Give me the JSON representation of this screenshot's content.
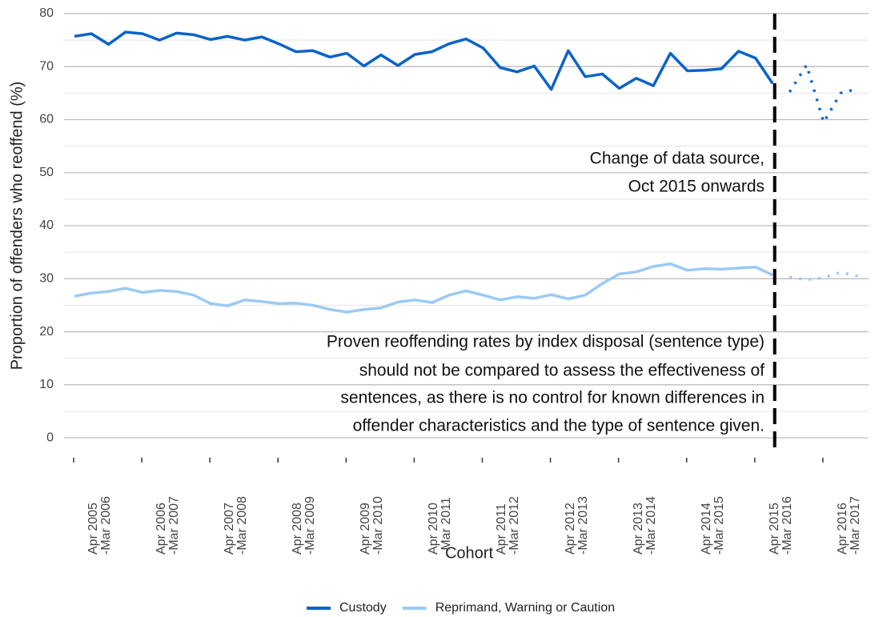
{
  "chart_data": {
    "type": "line",
    "y_label": "Proportion of offenders who reoffend (%)",
    "x_label": "Cohort",
    "categories": [
      "Apr 2005\n-Mar 2006",
      null,
      null,
      null,
      "Apr 2006\n-Mar 2007",
      null,
      null,
      null,
      "Apr 2007\n-Mar 2008",
      null,
      null,
      null,
      "Apr 2008\n-Mar 2009",
      null,
      null,
      null,
      "Apr 2009\n-Mar 2010",
      null,
      null,
      null,
      "Apr 2010\n-Mar 2011",
      null,
      null,
      null,
      "Apr 2011\n-Mar 2012",
      null,
      null,
      null,
      "Apr 2012\n-Mar 2013",
      null,
      null,
      null,
      "Apr 2013\n-Mar 2014",
      null,
      null,
      null,
      "Apr 2014\n-Mar 2015",
      null,
      null,
      null,
      "Apr 2015\n-Mar 2016",
      null,
      null,
      null,
      "Apr 2016\n-Mar 2017",
      null,
      null
    ],
    "series": [
      {
        "name": "Custody",
        "color": "#0a63c8",
        "values": [
          75.7,
          76.2,
          74.2,
          76.5,
          76.2,
          75,
          76.3,
          76,
          75.1,
          75.7,
          75,
          75.6,
          74.3,
          72.8,
          73,
          71.8,
          72.5,
          70.1,
          72.2,
          70.2,
          72.3,
          72.8,
          74.3,
          75.2,
          73.5,
          69.8,
          69,
          70.1,
          65.7,
          73,
          68.1,
          68.6,
          65.9,
          67.8,
          66.4,
          72.5,
          69.2,
          69.3,
          69.6,
          72.9,
          71.6,
          66.8,
          65.2,
          70.3,
          59.5,
          65,
          65.8
        ]
      },
      {
        "name": "Reprimand, Warning or Caution",
        "color": "#9bcaf5",
        "values": [
          26.7,
          27.3,
          27.6,
          28.2,
          27.4,
          27.8,
          27.6,
          26.9,
          25.3,
          24.9,
          26,
          25.7,
          25.3,
          25.4,
          25,
          24.2,
          23.7,
          24.2,
          24.5,
          25.6,
          26,
          25.5,
          26.9,
          27.7,
          26.9,
          26,
          26.6,
          26.3,
          27,
          26.2,
          26.9,
          29.1,
          30.9,
          31.3,
          32.3,
          32.8,
          31.6,
          31.9,
          31.8,
          32,
          32.2,
          30.7,
          30.3,
          29.8,
          30.2,
          31.2,
          30.5
        ]
      }
    ],
    "source_change_index": 42,
    "annotations": [
      {
        "lines": [
          "Change of data source,",
          "Oct 2015 onwards"
        ]
      },
      {
        "lines": [
          "Proven reoffending rates by index disposal (sentence type)",
          "should not be compared to assess the effectiveness of",
          "sentences, as there is no control for known differences in",
          "offender characteristics and the type of sentence given."
        ]
      }
    ],
    "ylim": [
      -2.7,
      81.8
    ],
    "yticks": [
      0,
      10,
      20,
      30,
      40,
      50,
      60,
      70,
      80
    ],
    "grid": true,
    "minor_grid": true,
    "legend": "bottom"
  }
}
